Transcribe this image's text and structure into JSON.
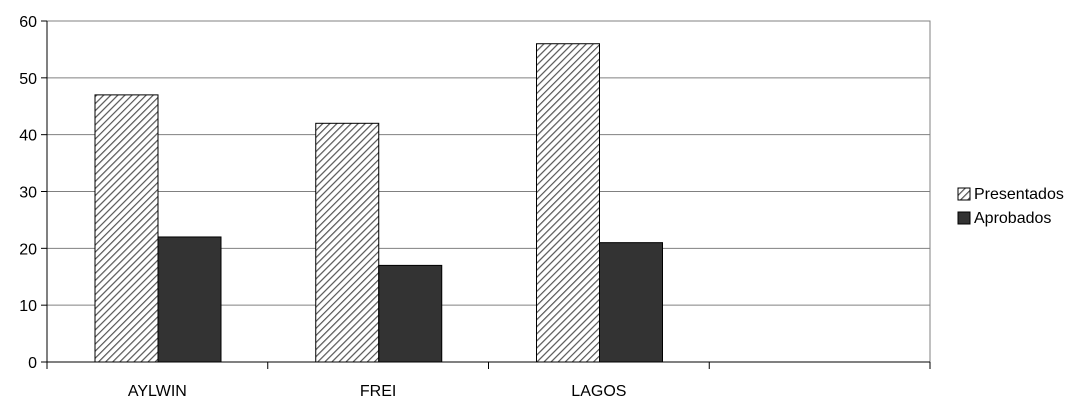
{
  "chart_data": {
    "type": "bar",
    "title": "",
    "xlabel": "",
    "ylabel": "",
    "categories": [
      "AYLWIN",
      "FREI",
      "LAGOS",
      ""
    ],
    "series": [
      {
        "name": "Presentados",
        "values": [
          47,
          42,
          56,
          null
        ],
        "pattern": "diagonal-hatch",
        "color": "#555555"
      },
      {
        "name": "Aprobados",
        "values": [
          22,
          17,
          21,
          null
        ],
        "pattern": "solid",
        "color": "#333333"
      }
    ],
    "ylim": [
      0,
      60
    ],
    "yticks": [
      "0",
      "10",
      "20",
      "30",
      "40",
      "50",
      "60"
    ],
    "grid": true,
    "legend_position": "right"
  }
}
